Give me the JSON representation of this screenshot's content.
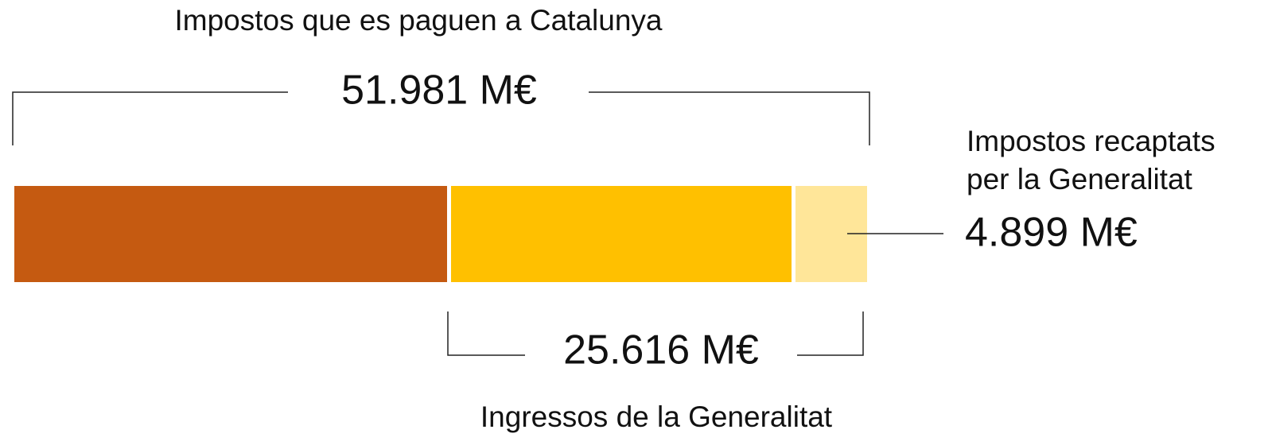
{
  "title": "Impostos que es paguen a Catalunya",
  "total": {
    "label": "51.981 M€"
  },
  "collected": {
    "caption": [
      "Impostos recaptats",
      "per la Generalitat"
    ],
    "label": "4.899 M€"
  },
  "income": {
    "label": "25.616 M€",
    "caption": "Ingressos de la Generalitat"
  }
}
